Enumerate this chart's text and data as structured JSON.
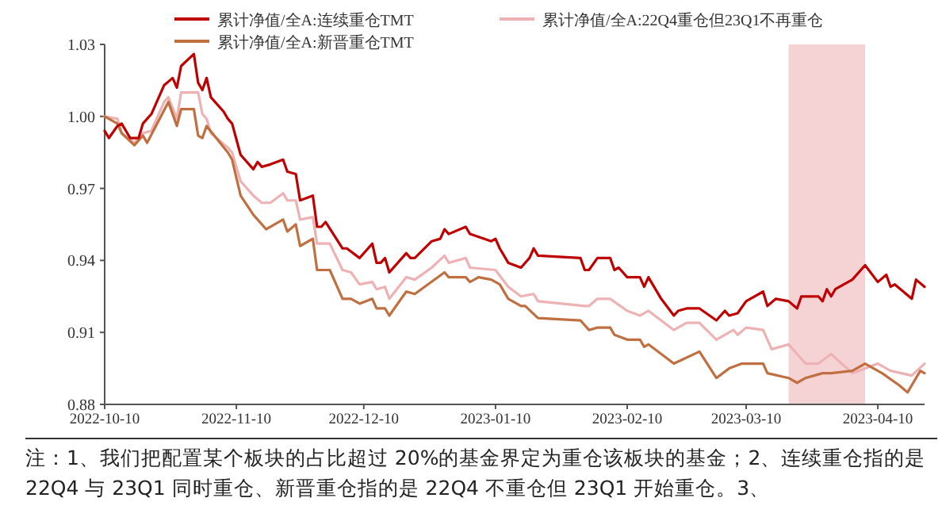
{
  "chart_data": {
    "type": "line",
    "legend": "top",
    "grid": false,
    "xlim": [
      "2022-10-10",
      "2023-04-21"
    ],
    "xticks": [
      "2022-10-10",
      "2022-11-10",
      "2022-12-10",
      "2023-01-10",
      "2023-02-10",
      "2023-03-10",
      "2023-04-10"
    ],
    "ylim": [
      0.88,
      1.03
    ],
    "yticks": [
      0.88,
      0.91,
      0.94,
      0.97,
      {
        "value": 1,
        "label": "1.00"
      },
      1.03
    ],
    "bands": [
      {
        "axis": "x",
        "from": "2023-03-20",
        "to": "2023-04-07",
        "color": "#f5d3d5"
      }
    ],
    "series": [
      {
        "name": "累计净值/全A:22Q4重仓但23Q1不再重仓",
        "color": "#eeb2b4",
        "x": [
          "2022-10-10",
          "2022-10-13",
          "2022-10-14",
          "2022-10-17",
          "2022-10-19",
          "2022-10-21",
          "2022-10-24",
          "2022-10-25",
          "2022-10-27",
          "2022-10-28",
          "2022-11-01",
          "2022-11-02",
          "2022-11-03",
          "2022-11-04",
          "2022-11-08",
          "2022-11-09",
          "2022-11-11",
          "2022-11-14",
          "2022-11-16",
          "2022-11-18",
          "2022-11-21",
          "2022-11-22",
          "2022-11-24",
          "2022-11-25",
          "2022-11-28",
          "2022-11-29",
          "2022-12-02",
          "2022-12-05",
          "2022-12-07",
          "2022-12-09",
          "2022-12-12",
          "2022-12-13",
          "2022-12-15",
          "2022-12-16",
          "2022-12-20",
          "2022-12-22",
          "2022-12-26",
          "2022-12-29",
          "2022-12-30",
          "2023-01-03",
          "2023-01-04",
          "2023-01-10",
          "2023-01-13",
          "2023-01-16",
          "2023-01-19",
          "2023-01-20",
          "2023-01-31",
          "2023-02-01",
          "2023-02-03",
          "2023-02-06",
          "2023-02-10",
          "2023-02-13",
          "2023-02-15",
          "2023-02-21",
          "2023-02-24",
          "2023-02-27",
          "2023-03-03",
          "2023-03-07",
          "2023-03-08",
          "2023-03-10",
          "2023-03-14",
          "2023-03-16",
          "2023-03-20",
          "2023-03-24",
          "2023-03-27",
          "2023-03-30",
          "2023-04-04",
          "2023-04-10",
          "2023-04-13",
          "2023-04-18",
          "2023-04-21"
        ],
        "values": [
          1.0,
          0.999,
          0.993,
          0.989,
          0.993,
          0.994,
          1.006,
          1.008,
          0.999,
          1.01,
          1.01,
          1.001,
          0.999,
          0.993,
          0.987,
          0.985,
          0.973,
          0.967,
          0.964,
          0.964,
          0.968,
          0.965,
          0.965,
          0.957,
          0.958,
          0.947,
          0.947,
          0.936,
          0.935,
          0.93,
          0.931,
          0.928,
          0.929,
          0.924,
          0.933,
          0.932,
          0.937,
          0.942,
          0.939,
          0.941,
          0.937,
          0.936,
          0.929,
          0.925,
          0.926,
          0.923,
          0.921,
          0.921,
          0.924,
          0.924,
          0.919,
          0.917,
          0.919,
          0.911,
          0.914,
          0.914,
          0.907,
          0.911,
          0.909,
          0.912,
          0.911,
          0.903,
          0.905,
          0.897,
          0.897,
          0.901,
          0.893,
          0.897,
          0.894,
          0.892,
          0.897
        ]
      },
      {
        "name": "累计净值/全A:新晋重仓TMT",
        "color": "#c07040",
        "x": [
          "2022-10-10",
          "2022-10-13",
          "2022-10-14",
          "2022-10-17",
          "2022-10-19",
          "2022-10-20",
          "2022-10-25",
          "2022-10-27",
          "2022-10-28",
          "2022-10-31",
          "2022-11-01",
          "2022-11-02",
          "2022-11-03",
          "2022-11-08",
          "2022-11-09",
          "2022-11-11",
          "2022-11-14",
          "2022-11-17",
          "2022-11-21",
          "2022-11-22",
          "2022-11-24",
          "2022-11-25",
          "2022-11-28",
          "2022-11-29",
          "2022-12-02",
          "2022-12-05",
          "2022-12-07",
          "2022-12-09",
          "2022-12-12",
          "2022-12-13",
          "2022-12-15",
          "2022-12-16",
          "2022-12-20",
          "2022-12-22",
          "2022-12-29",
          "2022-12-30",
          "2023-01-03",
          "2023-01-04",
          "2023-01-06",
          "2023-01-09",
          "2023-01-11",
          "2023-01-13",
          "2023-01-16",
          "2023-01-17",
          "2023-01-20",
          "2023-01-30",
          "2023-02-01",
          "2023-02-03",
          "2023-02-06",
          "2023-02-07",
          "2023-02-10",
          "2023-02-13",
          "2023-02-14",
          "2023-02-15",
          "2023-02-21",
          "2023-02-27",
          "2023-03-03",
          "2023-03-06",
          "2023-03-09",
          "2023-03-14",
          "2023-03-15",
          "2023-03-20",
          "2023-03-22",
          "2023-03-24",
          "2023-03-28",
          "2023-03-30",
          "2023-04-04",
          "2023-04-07",
          "2023-04-11",
          "2023-04-15",
          "2023-04-17",
          "2023-04-18",
          "2023-04-20",
          "2023-04-21"
        ],
        "values": [
          1.0,
          0.997,
          0.993,
          0.988,
          0.992,
          0.989,
          1.006,
          0.996,
          1.003,
          1.003,
          0.992,
          0.991,
          0.996,
          0.985,
          0.982,
          0.967,
          0.959,
          0.953,
          0.957,
          0.952,
          0.955,
          0.946,
          0.949,
          0.936,
          0.936,
          0.924,
          0.924,
          0.922,
          0.924,
          0.92,
          0.92,
          0.917,
          0.927,
          0.926,
          0.935,
          0.933,
          0.933,
          0.931,
          0.933,
          0.932,
          0.93,
          0.924,
          0.921,
          0.921,
          0.916,
          0.915,
          0.911,
          0.912,
          0.912,
          0.909,
          0.907,
          0.907,
          0.904,
          0.905,
          0.897,
          0.902,
          0.891,
          0.895,
          0.897,
          0.897,
          0.893,
          0.891,
          0.889,
          0.891,
          0.893,
          0.893,
          0.894,
          0.897,
          0.893,
          0.888,
          0.885,
          0.888,
          0.894,
          0.893
        ]
      },
      {
        "name": "累计净值/全A:连续重仓TMT",
        "color": "#c00000",
        "x": [
          "2022-10-10",
          "2022-10-11",
          "2022-10-13",
          "2022-10-14",
          "2022-10-16",
          "2022-10-18",
          "2022-10-19",
          "2022-10-21",
          "2022-10-24",
          "2022-10-26",
          "2022-10-27",
          "2022-10-28",
          "2022-10-31",
          "2022-11-01",
          "2022-11-02",
          "2022-11-03",
          "2022-11-04",
          "2022-11-07",
          "2022-11-08",
          "2022-11-09",
          "2022-11-11",
          "2022-11-13",
          "2022-11-14",
          "2022-11-15",
          "2022-11-16",
          "2022-11-18",
          "2022-11-21",
          "2022-11-22",
          "2022-11-24",
          "2022-11-25",
          "2022-11-28",
          "2022-11-29",
          "2022-11-30",
          "2022-12-01",
          "2022-12-05",
          "2022-12-06",
          "2022-12-09",
          "2022-12-12",
          "2022-12-13",
          "2022-12-14",
          "2022-12-15",
          "2022-12-16",
          "2022-12-20",
          "2022-12-21",
          "2022-12-22",
          "2022-12-26",
          "2022-12-28",
          "2022-12-29",
          "2022-12-30",
          "2023-01-03",
          "2023-01-04",
          "2023-01-09",
          "2023-01-10",
          "2023-01-11",
          "2023-01-13",
          "2023-01-16",
          "2023-01-18",
          "2023-01-19",
          "2023-01-20",
          "2023-01-30",
          "2023-01-31",
          "2023-02-01",
          "2023-02-03",
          "2023-02-06",
          "2023-02-07",
          "2023-02-08",
          "2023-02-09",
          "2023-02-10",
          "2023-02-13",
          "2023-02-14",
          "2023-02-15",
          "2023-02-18",
          "2023-02-21",
          "2023-02-22",
          "2023-02-24",
          "2023-02-27",
          "2023-03-03",
          "2023-03-05",
          "2023-03-06",
          "2023-03-08",
          "2023-03-10",
          "2023-03-14",
          "2023-03-15",
          "2023-03-17",
          "2023-03-20",
          "2023-03-22",
          "2023-03-23",
          "2023-03-27",
          "2023-03-28",
          "2023-03-29",
          "2023-03-30",
          "2023-03-31",
          "2023-04-04",
          "2023-04-07",
          "2023-04-10",
          "2023-04-12",
          "2023-04-13",
          "2023-04-14",
          "2023-04-18",
          "2023-04-19",
          "2023-04-21"
        ],
        "values": [
          0.994,
          0.991,
          0.996,
          0.997,
          0.991,
          0.991,
          0.997,
          1.001,
          1.013,
          1.016,
          1.012,
          1.021,
          1.026,
          1.014,
          1.011,
          1.016,
          1.008,
          1.002,
          0.999,
          0.997,
          0.984,
          0.98,
          0.978,
          0.981,
          0.979,
          0.98,
          0.982,
          0.977,
          0.976,
          0.965,
          0.967,
          0.954,
          0.954,
          0.956,
          0.945,
          0.945,
          0.941,
          0.947,
          0.939,
          0.939,
          0.941,
          0.935,
          0.943,
          0.941,
          0.941,
          0.948,
          0.949,
          0.953,
          0.951,
          0.954,
          0.951,
          0.948,
          0.949,
          0.945,
          0.939,
          0.937,
          0.941,
          0.945,
          0.942,
          0.941,
          0.936,
          0.936,
          0.941,
          0.941,
          0.936,
          0.937,
          0.935,
          0.933,
          0.933,
          0.929,
          0.933,
          0.924,
          0.917,
          0.919,
          0.92,
          0.92,
          0.915,
          0.919,
          0.917,
          0.918,
          0.923,
          0.927,
          0.921,
          0.924,
          0.923,
          0.92,
          0.925,
          0.925,
          0.923,
          0.928,
          0.925,
          0.928,
          0.932,
          0.938,
          0.931,
          0.934,
          0.929,
          0.93,
          0.924,
          0.932,
          0.929
        ]
      }
    ],
    "annotations": [
      "注：1、我们把配置某个板块的占比超过 20%的基金界定为重仓该板块的基金；2、连续重仓指的是 22Q4 与 23Q1 同时重仓、新晋重仓指的是 22Q4 不重仓但 23Q1 开始重仓。3、"
    ]
  }
}
